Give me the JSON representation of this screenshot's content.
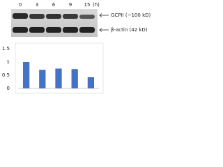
{
  "blot": {
    "lanes": [
      "0",
      "3",
      "6",
      "9",
      "15"
    ],
    "unit": "(h)",
    "bands": [
      "GCPII (~100 kD)",
      "β-actin (42 kD)"
    ]
  },
  "chart_data": {
    "type": "bar",
    "categories": [
      null,
      null,
      null,
      null,
      null
    ],
    "values": [
      1.0,
      0.7,
      0.75,
      0.73,
      0.42
    ],
    "color": "#4472c4",
    "ylim": [
      0,
      1.5
    ],
    "yticks": [
      0,
      0.5,
      1,
      1.5
    ],
    "grid": false
  }
}
